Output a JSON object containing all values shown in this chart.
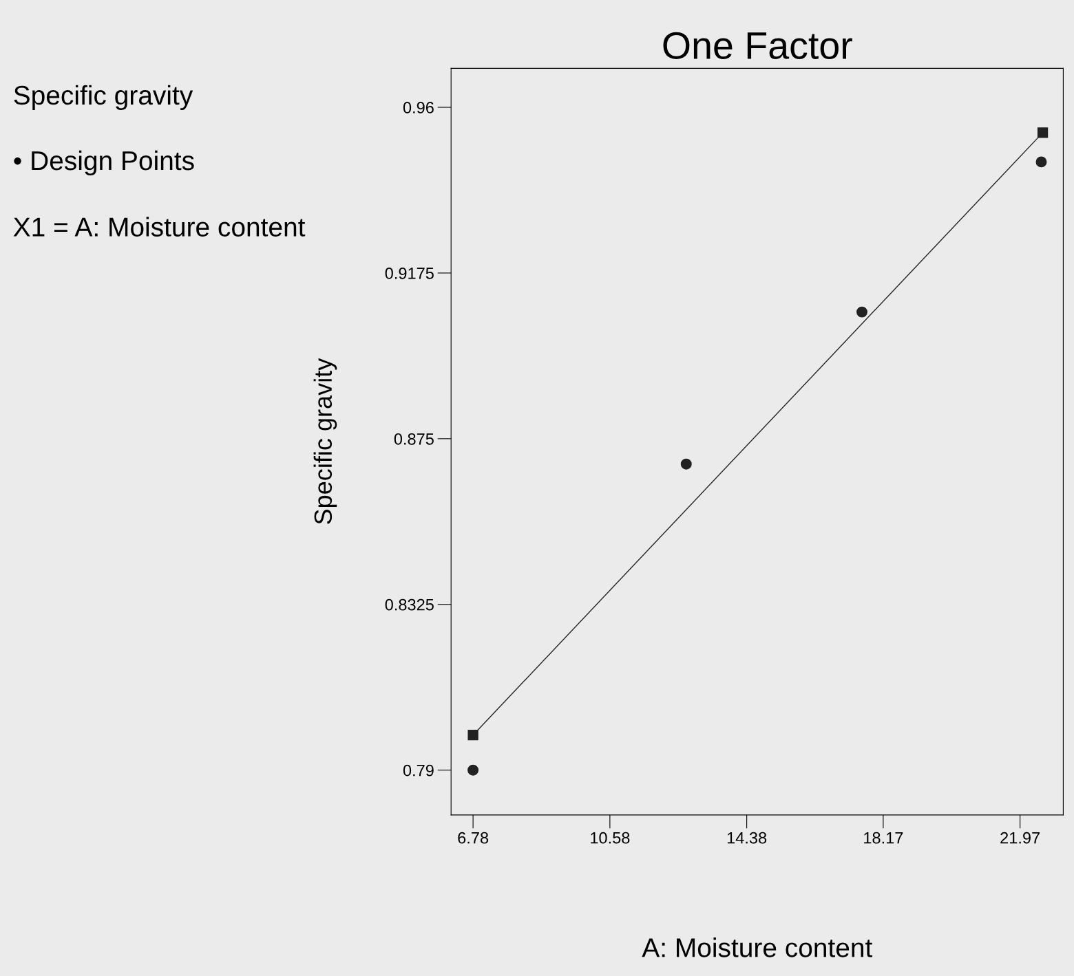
{
  "chart_data": {
    "type": "scatter",
    "title": "One Factor",
    "xlabel": "A: Moisture content",
    "ylabel": "Specific gravity",
    "annotations": [
      "Specific gravity",
      "• Design Points",
      "X1 = A: Moisture content"
    ],
    "xlim": [
      6.17,
      23.17
    ],
    "xticks": [
      6.78,
      10.58,
      14.38,
      18.17,
      21.97
    ],
    "ylim": [
      0.7785,
      0.97
    ],
    "yticks": [
      0.96,
      0.9175,
      0.875,
      0.8325,
      0.79
    ],
    "grid": false,
    "legend": false,
    "series": [
      {
        "marker": "circle",
        "color": "#222222",
        "x": [
          6.78,
          12.7,
          17.58,
          22.56
        ],
        "values": [
          0.79,
          0.8685,
          0.9075,
          0.946
        ]
      },
      {
        "type": "line",
        "marker": "square",
        "line_style": "solid",
        "color": "#222222",
        "x": [
          6.78,
          22.6
        ],
        "values": [
          0.799,
          0.9535
        ]
      }
    ]
  }
}
